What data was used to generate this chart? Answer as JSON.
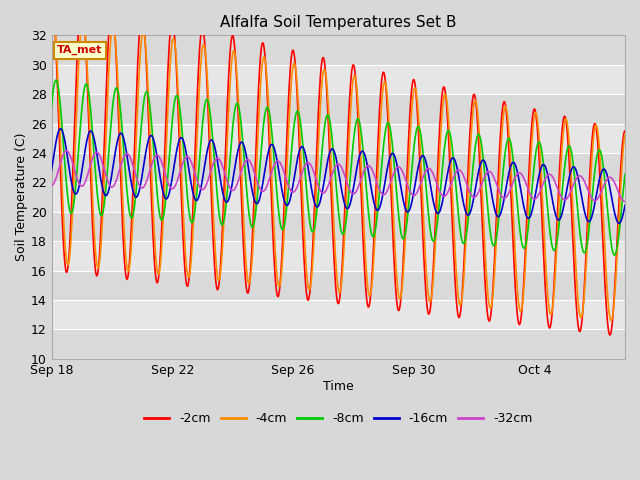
{
  "title": "Alfalfa Soil Temperatures Set B",
  "xlabel": "Time",
  "ylabel": "Soil Temperature (C)",
  "annotation": "TA_met",
  "ylim": [
    10,
    32
  ],
  "yticks": [
    10,
    12,
    14,
    16,
    18,
    20,
    22,
    24,
    26,
    28,
    30,
    32
  ],
  "colors": {
    "-2cm": "#ff0000",
    "-4cm": "#ff8c00",
    "-8cm": "#00cc00",
    "-16cm": "#0000cc",
    "-32cm": "#cc44cc"
  },
  "legend_labels": [
    "-2cm",
    "-4cm",
    "-8cm",
    "-16cm",
    "-32cm"
  ],
  "background_color": "#d8d8d8",
  "plot_bg_color": "#e4e4e4",
  "grid_color": "#ffffff",
  "xtick_positions": [
    0,
    4,
    8,
    12,
    16
  ],
  "xtick_labels": [
    "Sep 18",
    "Sep 22",
    "Sep 26",
    "Sep 30",
    "Oct 4"
  ],
  "n_days": 19,
  "series_params": {
    "-2cm": {
      "amp_s": 9.5,
      "amp_e": 7.0,
      "base_s": 25.5,
      "base_e": 18.5,
      "phase": 0.0,
      "period": 1.0
    },
    "-4cm": {
      "amp_s": 8.5,
      "amp_e": 6.5,
      "base_s": 25.0,
      "base_e": 19.0,
      "phase": 0.04,
      "period": 1.0
    },
    "-8cm": {
      "amp_s": 4.5,
      "amp_e": 3.5,
      "base_s": 24.5,
      "base_e": 20.5,
      "phase": 0.15,
      "period": 1.0
    },
    "-16cm": {
      "amp_s": 2.2,
      "amp_e": 1.8,
      "base_s": 23.5,
      "base_e": 21.0,
      "phase": 0.3,
      "period": 1.0
    },
    "-32cm": {
      "amp_s": 1.2,
      "amp_e": 0.8,
      "base_s": 23.0,
      "base_e": 21.5,
      "phase": 0.5,
      "period": 1.0
    }
  }
}
